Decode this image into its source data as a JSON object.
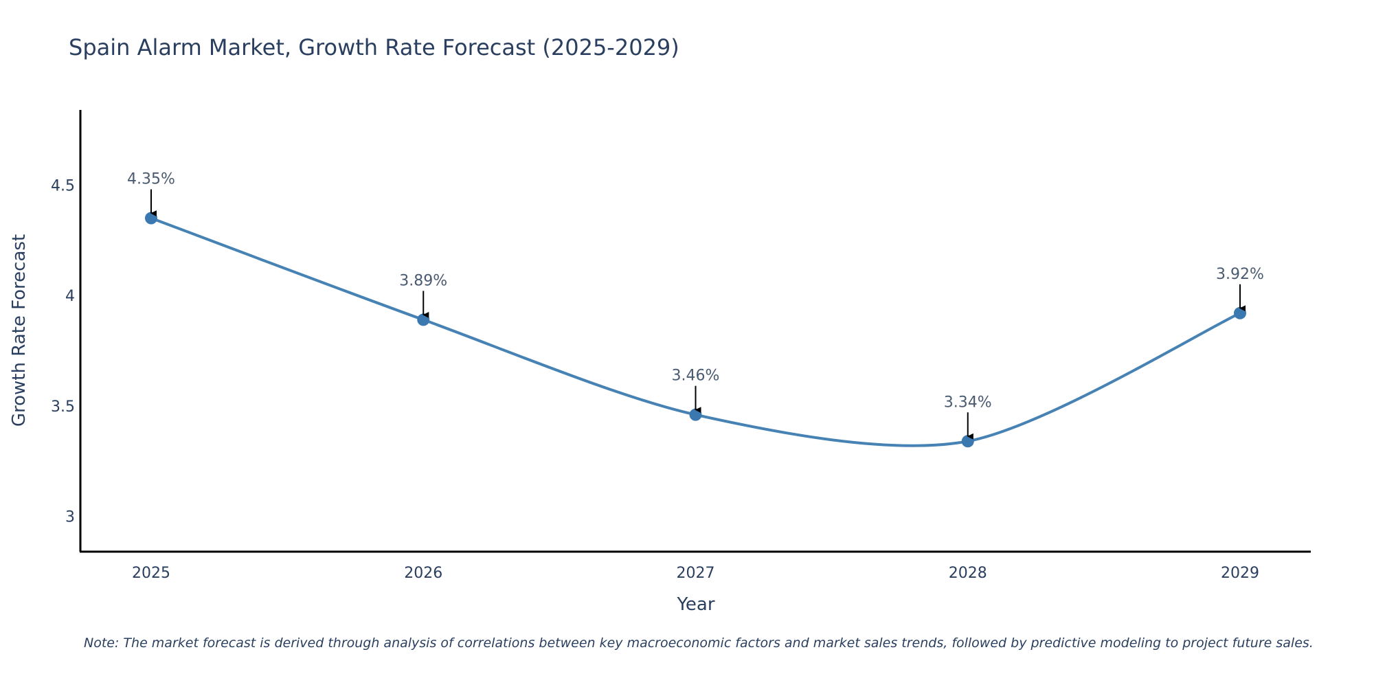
{
  "chart_data": {
    "type": "line",
    "title": "Spain Alarm Market, Growth Rate Forecast (2025-2029)",
    "xlabel": "Year",
    "ylabel": "Growth Rate Forecast",
    "categories": [
      "2025",
      "2026",
      "2027",
      "2028",
      "2029"
    ],
    "series": [
      {
        "name": "Growth Rate Forecast",
        "values": [
          4.35,
          3.89,
          3.46,
          3.34,
          3.92
        ],
        "labels": [
          "4.35%",
          "3.89%",
          "3.46%",
          "3.34%",
          "3.92%"
        ]
      }
    ],
    "yticks": [
      "3",
      "3.5",
      "4",
      "4.5"
    ],
    "ylim": [
      2.84,
      4.84
    ],
    "grid": false,
    "line_shape": "spline",
    "line_color": "#4682b4",
    "marker_color": "#3b78b0",
    "annotation_arrow_color": "#000000",
    "note": "Note: The market forecast is derived through analysis of correlations between key macroeconomic factors and market sales trends, followed by predictive modeling to project future sales."
  }
}
